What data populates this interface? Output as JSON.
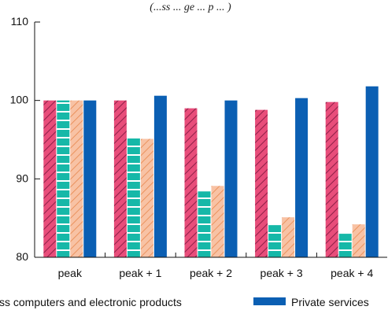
{
  "chart_data": {
    "type": "bar",
    "subtitle": "(...ss ... ge ... p ... )",
    "categories": [
      "peak",
      "peak + 1",
      "peak + 2",
      "peak + 3",
      "peak + 4"
    ],
    "ylim": [
      80,
      110
    ],
    "yticks": [
      80,
      90,
      100,
      110
    ],
    "grid": false,
    "legend_position": "bottom",
    "series": [
      {
        "name": "",
        "values": [
          100,
          100,
          99,
          98.8,
          99.8
        ],
        "color": "#e84d7a",
        "hatch_color": "#8e1f48",
        "pattern": "diagonal"
      },
      {
        "name": "",
        "values": [
          100,
          95.2,
          88.4,
          84.1,
          83.0
        ],
        "color": "#16b8a8",
        "hatch_color": "#ffffff",
        "pattern": "horizontal"
      },
      {
        "name": "ss computers and electronic products",
        "values": [
          100,
          95.1,
          89.1,
          85.1,
          84.2
        ],
        "color": "#f8c2a4",
        "hatch_color": "#e8874d",
        "pattern": "diagonal"
      },
      {
        "name": "Private services",
        "values": [
          100,
          100.6,
          100,
          100.3,
          101.8
        ],
        "color": "#0b5fb3",
        "hatch_color": "",
        "pattern": "solid"
      }
    ]
  }
}
